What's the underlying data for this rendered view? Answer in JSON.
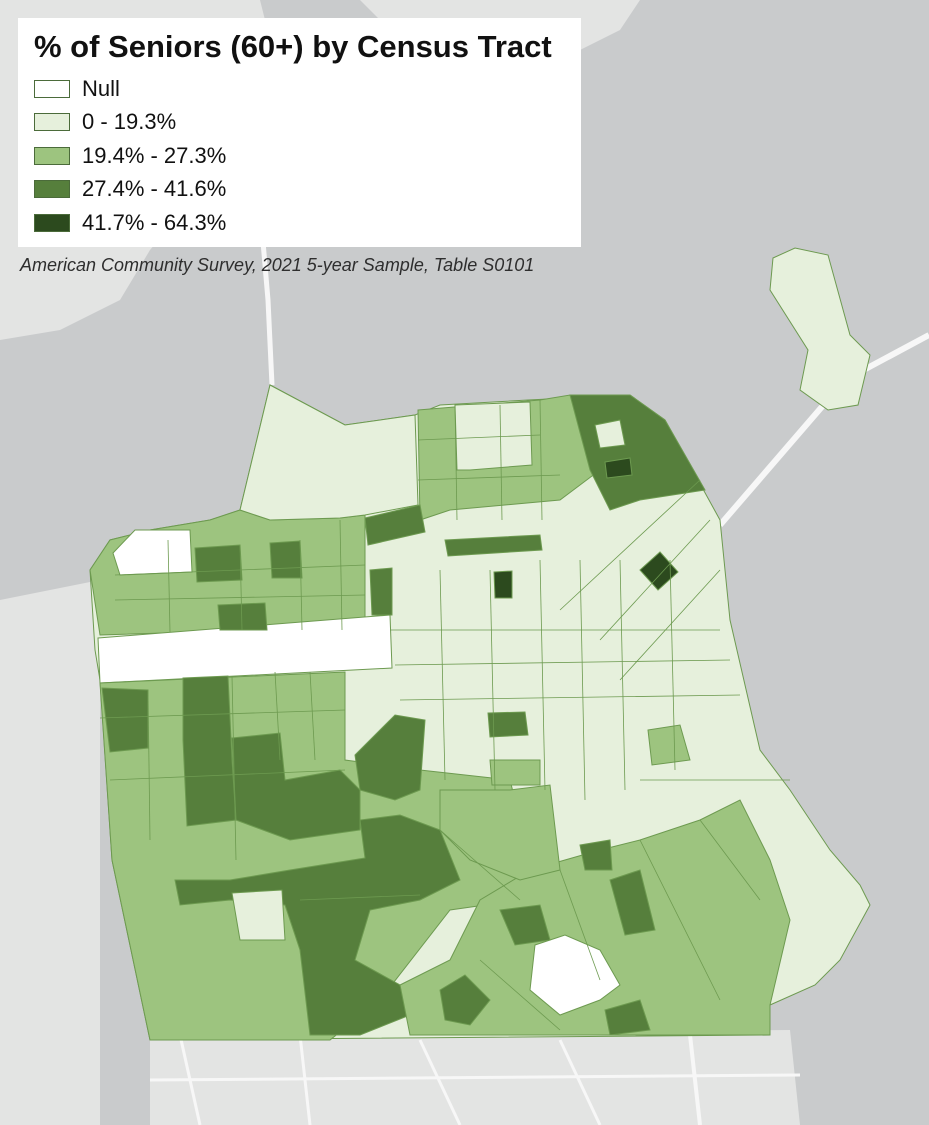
{
  "legend": {
    "title": "% of Seniors (60+) by Census Tract",
    "classes": [
      {
        "label": "Null",
        "color": "#ffffff"
      },
      {
        "label": "0 - 19.3%",
        "color": "#e6f0dc"
      },
      {
        "label": "19.4% - 27.3%",
        "color": "#9dc47f"
      },
      {
        "label": "27.4% - 41.6%",
        "color": "#567f3c"
      },
      {
        "label": "41.7% - 64.3%",
        "color": "#2c4a1e"
      }
    ]
  },
  "source": "American Community Survey, 2021 5-year Sample, Table S0101",
  "colors": {
    "water": "#c9cbcc",
    "land": "#e3e4e3",
    "roads": "#f7f7f7",
    "tract_border": "#6d9a50"
  }
}
